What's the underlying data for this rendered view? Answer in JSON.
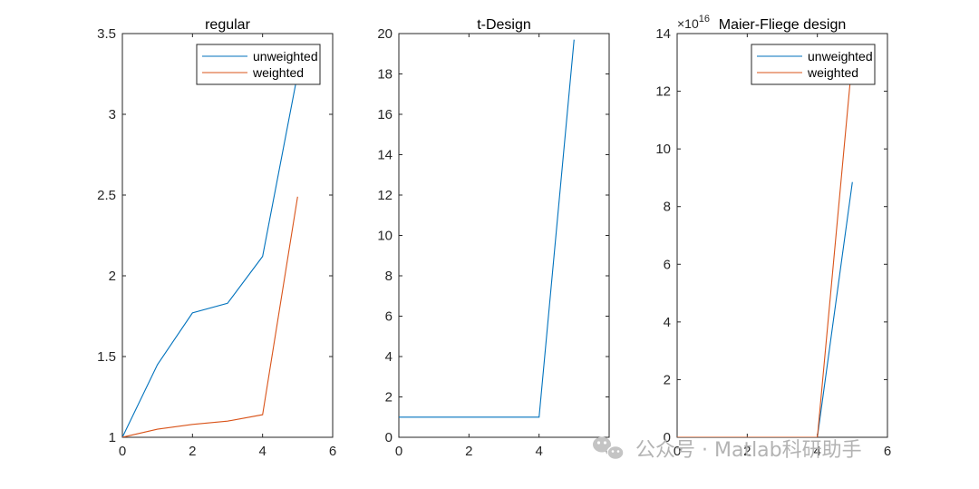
{
  "chart_data": [
    {
      "type": "line",
      "title": "regular",
      "xlim": [
        0,
        6
      ],
      "ylim": [
        1,
        3.5
      ],
      "xticks": [
        0,
        2,
        4,
        6
      ],
      "yticks": [
        1,
        1.5,
        2,
        2.5,
        3,
        3.5
      ],
      "ytick_labels": [
        "1",
        "1.5",
        "2",
        "2.5",
        "3",
        "3.5"
      ],
      "grid": false,
      "legend": "top-right",
      "series": [
        {
          "name": "unweighted",
          "color": "#0072BD",
          "x": [
            0,
            1,
            2,
            3,
            4,
            5
          ],
          "y": [
            1.0,
            1.45,
            1.77,
            1.83,
            2.12,
            3.25
          ]
        },
        {
          "name": "weighted",
          "color": "#D95319",
          "x": [
            0,
            1,
            2,
            3,
            4,
            5
          ],
          "y": [
            1.0,
            1.05,
            1.08,
            1.1,
            1.14,
            2.49
          ]
        }
      ]
    },
    {
      "type": "line",
      "title": "t-Design",
      "xlim": [
        0,
        6
      ],
      "ylim": [
        0,
        20
      ],
      "xticks": [
        0,
        2,
        4,
        6
      ],
      "yticks": [
        0,
        2,
        4,
        6,
        8,
        10,
        12,
        14,
        16,
        18,
        20
      ],
      "ytick_labels": [
        "0",
        "2",
        "4",
        "6",
        "8",
        "10",
        "12",
        "14",
        "16",
        "18",
        "20"
      ],
      "grid": false,
      "series": [
        {
          "color": "#0072BD",
          "x": [
            0,
            1,
            2,
            3,
            4,
            5
          ],
          "y": [
            1,
            1,
            1,
            1,
            1,
            19.7
          ]
        }
      ]
    },
    {
      "type": "line",
      "title": "Maier-Fliege design",
      "xlim": [
        0,
        6
      ],
      "ylim": [
        0,
        14
      ],
      "xticks": [
        0,
        2,
        4,
        6
      ],
      "yticks": [
        0,
        2,
        4,
        6,
        8,
        10,
        12,
        14
      ],
      "ytick_labels": [
        "0",
        "2",
        "4",
        "6",
        "8",
        "10",
        "12",
        "14"
      ],
      "y_exponent": {
        "base": "×10",
        "power": "16"
      },
      "grid": false,
      "legend": "top-right",
      "series": [
        {
          "name": "unweighted",
          "color": "#0072BD",
          "x": [
            0,
            1,
            2,
            3,
            4,
            5
          ],
          "y": [
            0,
            0,
            0,
            0,
            0,
            8.85
          ]
        },
        {
          "name": "weighted",
          "color": "#D95319",
          "x": [
            0,
            1,
            2,
            3,
            4,
            4.95
          ],
          "y": [
            0,
            0,
            0,
            0,
            0,
            12.5
          ]
        }
      ]
    }
  ],
  "watermark": {
    "text": "公众号 · Matlab科研助手",
    "icon": "wechat-icon"
  }
}
